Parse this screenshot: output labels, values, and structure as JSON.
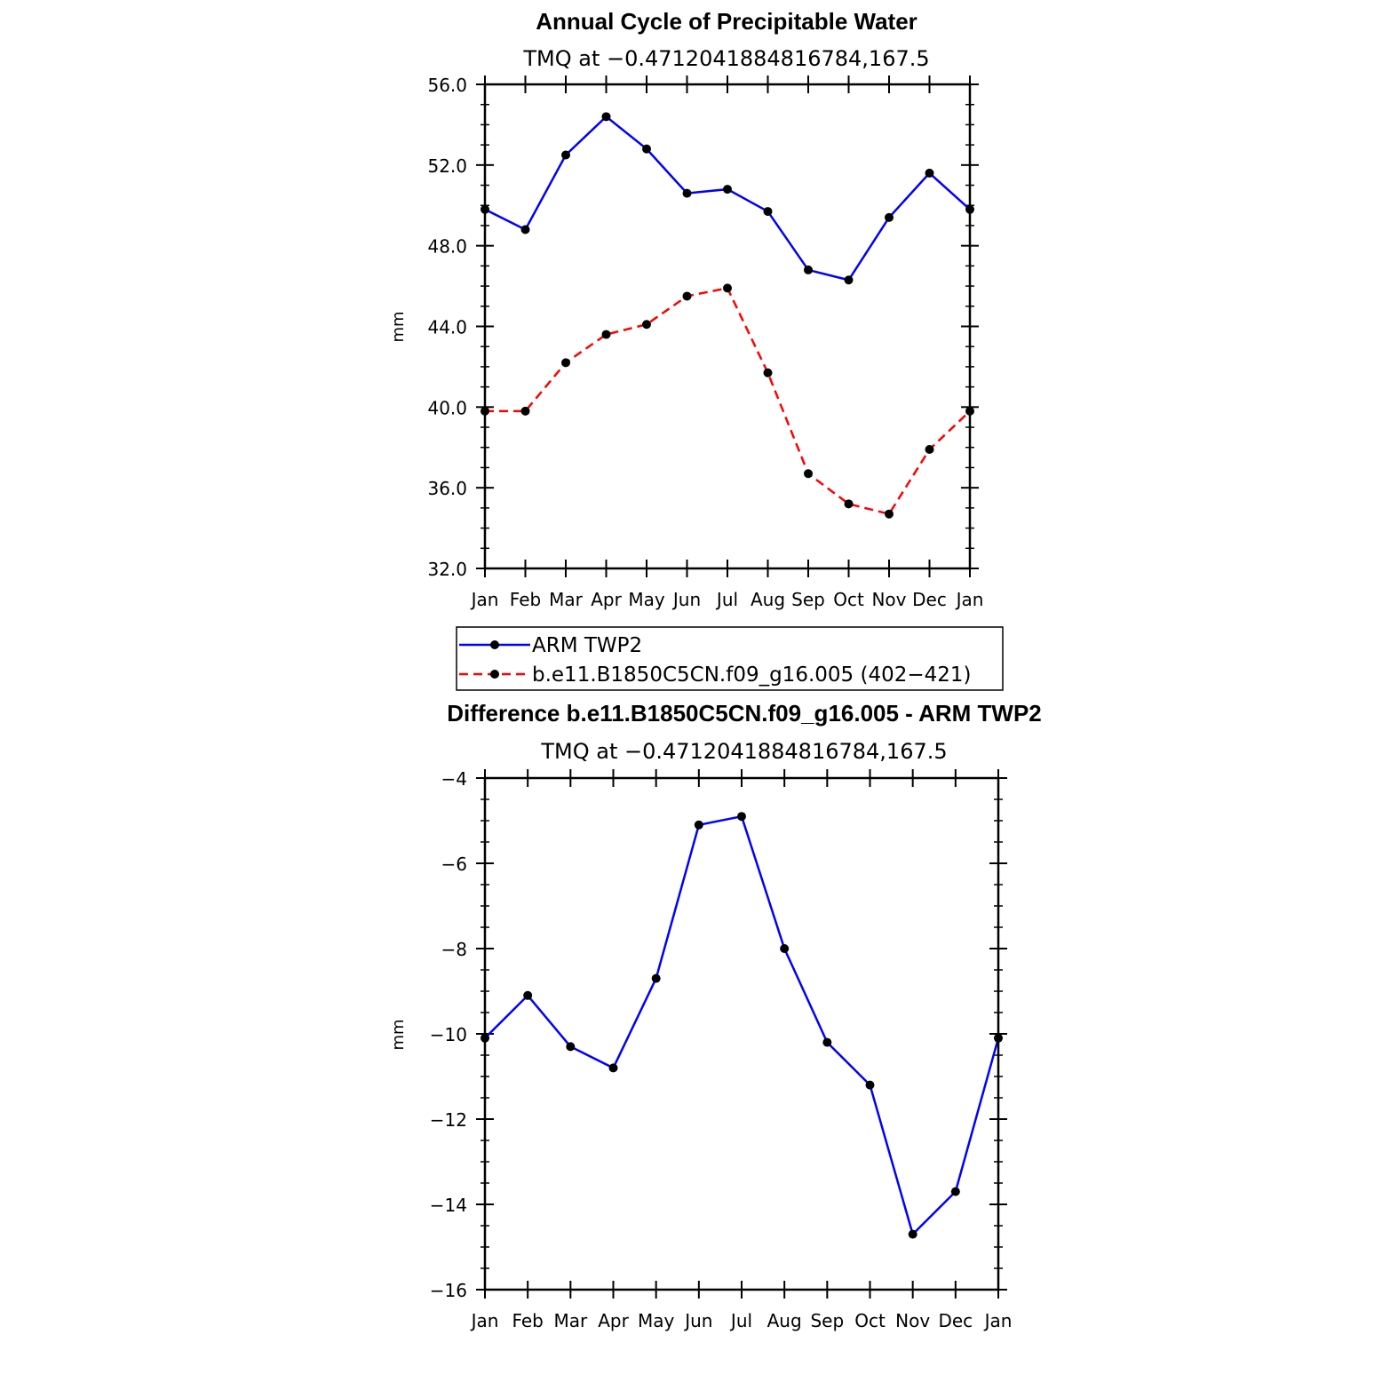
{
  "chart_data": [
    {
      "type": "line",
      "title": "Annual Cycle of Precipitable Water",
      "subtitle": "TMQ at −0.4712041884816784,167.5",
      "ylabel": "mm",
      "xlabel": "",
      "categories": [
        "Jan",
        "Feb",
        "Mar",
        "Apr",
        "May",
        "Jun",
        "Jul",
        "Aug",
        "Sep",
        "Oct",
        "Nov",
        "Dec",
        "Jan"
      ],
      "ylim": [
        32.0,
        56.0
      ],
      "yticks": [
        "32.0",
        "36.0",
        "40.0",
        "44.0",
        "48.0",
        "52.0",
        "56.0"
      ],
      "ytick_values": [
        32,
        36,
        40,
        44,
        48,
        52,
        56
      ],
      "series": [
        {
          "name": "ARM TWP2",
          "color": "#0000ff",
          "dash": "solid",
          "values": [
            49.8,
            48.8,
            52.5,
            54.4,
            52.8,
            50.6,
            50.8,
            49.7,
            46.8,
            46.3,
            49.4,
            51.6,
            49.8
          ]
        },
        {
          "name": "b.e11.B1850C5CN.f09_g16.005 (402−421)",
          "color": "#ff0000",
          "dash": "dashed",
          "values": [
            39.8,
            39.8,
            42.2,
            43.6,
            44.1,
            45.5,
            45.9,
            41.7,
            36.7,
            35.2,
            34.7,
            37.9,
            39.8
          ]
        }
      ],
      "legend": "below"
    },
    {
      "type": "line",
      "title": "Difference b.e11.B1850C5CN.f09_g16.005 - ARM TWP2",
      "subtitle": "TMQ at −0.4712041884816784,167.5",
      "ylabel": "mm",
      "xlabel": "",
      "categories": [
        "Jan",
        "Feb",
        "Mar",
        "Apr",
        "May",
        "Jun",
        "Jul",
        "Aug",
        "Sep",
        "Oct",
        "Nov",
        "Dec",
        "Jan"
      ],
      "ylim": [
        -16,
        -4
      ],
      "yticks": [
        "−16",
        "−14",
        "−12",
        "−10",
        "−8",
        "−6",
        "−4"
      ],
      "ytick_values": [
        -16,
        -14,
        -12,
        -10,
        -8,
        -6,
        -4
      ],
      "series": [
        {
          "color": "#0000ff",
          "dash": "solid",
          "values": [
            -10.1,
            -9.1,
            -10.3,
            -10.8,
            -8.7,
            -5.1,
            -4.9,
            -8.0,
            -10.2,
            -11.2,
            -14.7,
            -13.7,
            -10.1
          ]
        }
      ]
    }
  ]
}
